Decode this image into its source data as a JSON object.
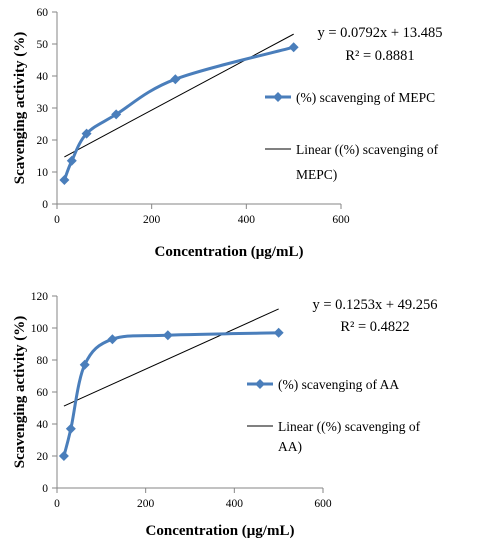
{
  "colors": {
    "series": "#4a7ebb",
    "trendline": "#000000",
    "axis": "#868686",
    "text": "#000000"
  },
  "chart_data": [
    {
      "type": "line",
      "xlabel": "Concentration (μg/mL)",
      "ylabel": "Scavenging activity (%)",
      "xlim": [
        0,
        600
      ],
      "ylim": [
        0,
        60
      ],
      "xticks": [
        "0",
        "200",
        "400",
        "600"
      ],
      "yticks": [
        "0",
        "10",
        "20",
        "30",
        "40",
        "50",
        "60"
      ],
      "grid": false,
      "legend_position": "right",
      "series": [
        {
          "name": "(%) scavenging of MEPC",
          "marker": "diamond",
          "smooth": true,
          "x": [
            15.6,
            31.25,
            62.5,
            125,
            250,
            500
          ],
          "y": [
            7.5,
            13.5,
            22,
            28,
            39,
            49
          ]
        },
        {
          "name": "Linear ((%) scavenging of MEPC)",
          "kind": "trendline",
          "slope": 0.0792,
          "intercept": 13.485,
          "x_range": [
            15.6,
            500
          ]
        }
      ],
      "equation": "y = 0.0792x + 13.485",
      "r_squared": "R² = 0.8881"
    },
    {
      "type": "line",
      "xlabel": "Concentration (μg/mL)",
      "ylabel": "Scavenging activity (%)",
      "xlim": [
        0,
        600
      ],
      "ylim": [
        0,
        120
      ],
      "xticks": [
        "0",
        "200",
        "400",
        "600"
      ],
      "yticks": [
        "0",
        "20",
        "40",
        "60",
        "80",
        "100",
        "120"
      ],
      "grid": false,
      "legend_position": "right",
      "series": [
        {
          "name": "(%) scavenging of AA",
          "marker": "diamond",
          "smooth": true,
          "x": [
            15.6,
            31.25,
            62.5,
            125,
            250,
            500
          ],
          "y": [
            20,
            37,
            77,
            93,
            95.5,
            97
          ]
        },
        {
          "name": "Linear ((%) scavenging of AA)",
          "kind": "trendline",
          "slope": 0.1253,
          "intercept": 49.256,
          "x_range": [
            15.6,
            500
          ]
        }
      ],
      "equation": "y = 0.1253x + 49.256",
      "r_squared": "R² = 0.4822"
    }
  ]
}
